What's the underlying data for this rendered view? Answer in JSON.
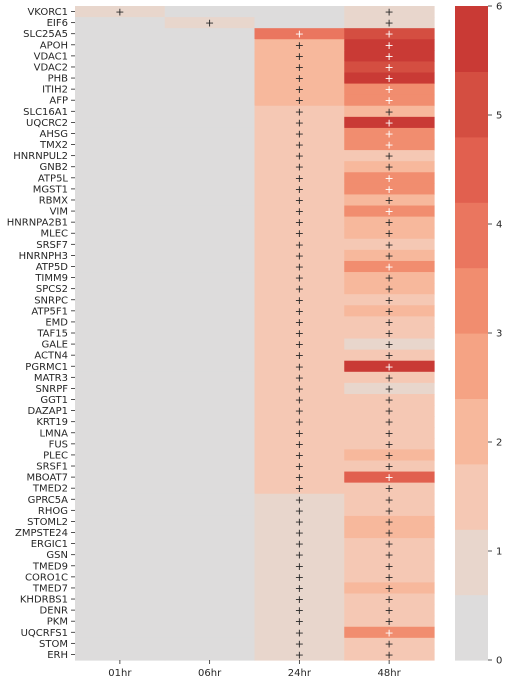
{
  "chart_data": {
    "type": "heatmap",
    "columns": [
      "01hr",
      "06hr",
      "24hr",
      "48hr"
    ],
    "rows": [
      "VKORC1",
      "EIF6",
      "SLC25A5",
      "APOH",
      "VDAC1",
      "VDAC2",
      "PHB",
      "ITIH2",
      "AFP",
      "SLC16A1",
      "UQCRC2",
      "AHSG",
      "TMX2",
      "HNRNPUL2",
      "GNB2",
      "ATP5L",
      "MGST1",
      "RBMX",
      "VIM",
      "HNRNPA2B1",
      "MLEC",
      "SRSF7",
      "HNRNPH3",
      "ATP5D",
      "TIMM9",
      "SPCS2",
      "SNRPC",
      "ATP5F1",
      "EMD",
      "TAF15",
      "GALE",
      "ACTN4",
      "PGRMC1",
      "MATR3",
      "SNRPF",
      "GGT1",
      "DAZAP1",
      "KRT19",
      "LMNA",
      "FUS",
      "PLEC",
      "SRSF1",
      "MBOAT7",
      "TMED2",
      "GPRC5A",
      "RHOG",
      "STOML2",
      "ZMPSTE24",
      "ERGIC1",
      "GSN",
      "TMED9",
      "CORO1C",
      "TMED7",
      "KHDRBS1",
      "DENR",
      "PKM",
      "UQCRFS1",
      "STOM",
      "ERH"
    ],
    "values": [
      [
        1.0,
        0.0,
        0.0,
        1.0
      ],
      [
        0.0,
        1.0,
        0.0,
        1.0
      ],
      [
        0.0,
        0.0,
        3.8,
        5.0
      ],
      [
        0.0,
        0.0,
        2.3,
        5.8
      ],
      [
        0.0,
        0.0,
        2.3,
        5.8
      ],
      [
        0.0,
        0.0,
        2.3,
        5.3
      ],
      [
        0.0,
        0.0,
        2.3,
        6.0
      ],
      [
        0.0,
        0.0,
        2.3,
        3.2
      ],
      [
        0.0,
        0.0,
        2.3,
        3.2
      ],
      [
        0.0,
        0.0,
        1.7,
        2.3
      ],
      [
        0.0,
        0.0,
        1.7,
        6.0
      ],
      [
        0.0,
        0.0,
        1.7,
        3.2
      ],
      [
        0.0,
        0.0,
        1.7,
        3.2
      ],
      [
        0.0,
        0.0,
        1.7,
        1.7
      ],
      [
        0.0,
        0.0,
        1.7,
        2.3
      ],
      [
        0.0,
        0.0,
        1.7,
        3.2
      ],
      [
        0.0,
        0.0,
        1.3,
        3.2
      ],
      [
        0.0,
        0.0,
        1.3,
        2.3
      ],
      [
        0.0,
        0.0,
        1.3,
        3.2
      ],
      [
        0.0,
        0.0,
        1.3,
        2.3
      ],
      [
        0.0,
        0.0,
        1.3,
        2.3
      ],
      [
        0.0,
        0.0,
        1.3,
        1.7
      ],
      [
        0.0,
        0.0,
        1.3,
        2.3
      ],
      [
        0.0,
        0.0,
        1.3,
        3.2
      ],
      [
        0.0,
        0.0,
        1.3,
        2.3
      ],
      [
        0.0,
        0.0,
        1.3,
        2.3
      ],
      [
        0.0,
        0.0,
        1.3,
        1.7
      ],
      [
        0.0,
        0.0,
        1.3,
        2.3
      ],
      [
        0.0,
        0.0,
        1.3,
        1.7
      ],
      [
        0.0,
        0.0,
        1.3,
        1.7
      ],
      [
        0.0,
        0.0,
        1.3,
        1.0
      ],
      [
        0.0,
        0.0,
        1.3,
        1.7
      ],
      [
        0.0,
        0.0,
        1.3,
        6.0
      ],
      [
        0.0,
        0.0,
        1.3,
        1.7
      ],
      [
        0.0,
        0.0,
        1.3,
        1.0
      ],
      [
        0.0,
        0.0,
        1.3,
        1.7
      ],
      [
        0.0,
        0.0,
        1.3,
        1.7
      ],
      [
        0.0,
        0.0,
        1.3,
        1.7
      ],
      [
        0.0,
        0.0,
        1.3,
        1.7
      ],
      [
        0.0,
        0.0,
        1.3,
        1.3
      ],
      [
        0.0,
        0.0,
        1.3,
        2.3
      ],
      [
        0.0,
        0.0,
        1.3,
        1.7
      ],
      [
        0.0,
        0.0,
        1.3,
        4.7
      ],
      [
        0.0,
        0.0,
        1.3,
        1.7
      ],
      [
        0.0,
        0.0,
        1.0,
        1.7
      ],
      [
        0.0,
        0.0,
        1.0,
        1.3
      ],
      [
        0.0,
        0.0,
        1.0,
        2.3
      ],
      [
        0.0,
        0.0,
        1.0,
        2.3
      ],
      [
        0.0,
        0.0,
        1.0,
        1.7
      ],
      [
        0.0,
        0.0,
        1.0,
        1.7
      ],
      [
        0.0,
        0.0,
        1.0,
        1.7
      ],
      [
        0.0,
        0.0,
        1.0,
        1.3
      ],
      [
        0.0,
        0.0,
        1.0,
        2.3
      ],
      [
        0.0,
        0.0,
        1.0,
        1.7
      ],
      [
        0.0,
        0.0,
        1.0,
        1.7
      ],
      [
        0.0,
        0.0,
        1.0,
        1.3
      ],
      [
        0.0,
        0.0,
        1.0,
        3.2
      ],
      [
        0.0,
        0.0,
        1.0,
        1.7
      ],
      [
        0.0,
        0.0,
        1.0,
        1.7
      ]
    ],
    "annotation_mark": "+",
    "vmin": 0,
    "vmax": 6,
    "colorbar_ticks": [
      0,
      1,
      2,
      3,
      4,
      5,
      6
    ],
    "colorbar_colors": [
      "#dddcdc",
      "#e8d6cc",
      "#f5c8b4",
      "#f7b89c",
      "#f5a384",
      "#f18d6f",
      "#ea765f",
      "#e1604f",
      "#d44e41",
      "#c93a35"
    ],
    "grid": false,
    "legend": "colorbar-right",
    "title": "",
    "xlabel": "",
    "ylabel": ""
  }
}
